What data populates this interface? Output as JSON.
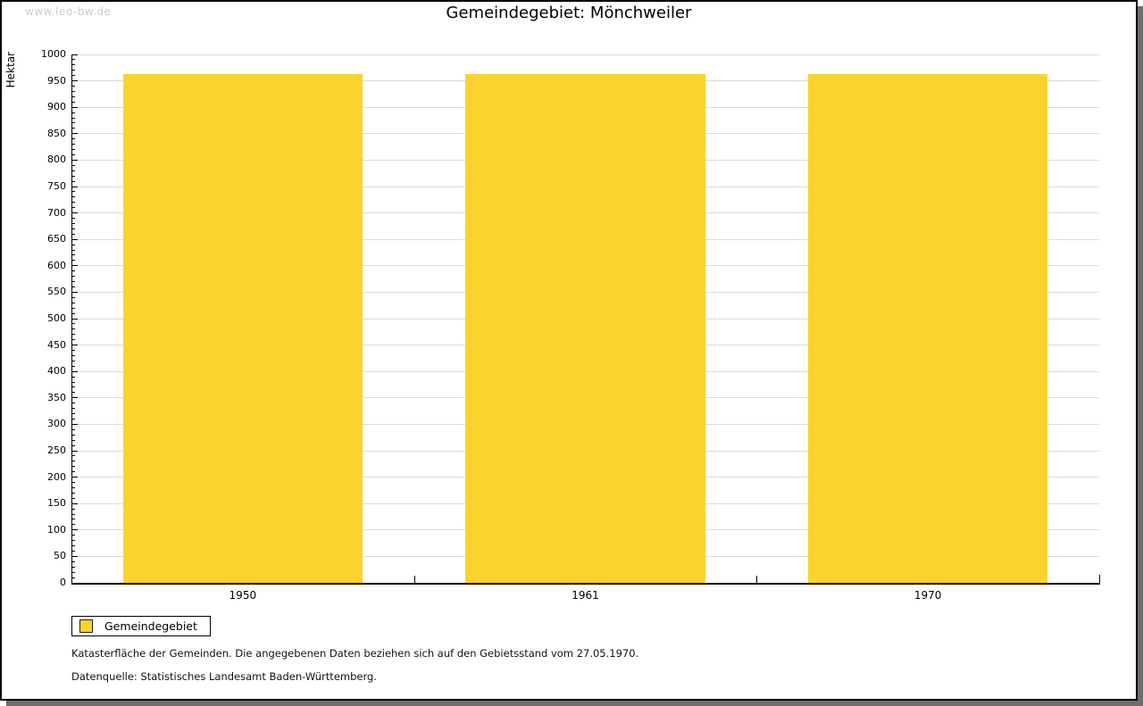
{
  "watermark": "www.leo-bw.de",
  "header": {
    "title": "Gemeindegebiet: Mönchweiler"
  },
  "chart_data": {
    "type": "bar",
    "categories": [
      "1950",
      "1961",
      "1970"
    ],
    "values": [
      962,
      962,
      962
    ],
    "title": "Gemeindegebiet: Mönchweiler",
    "xlabel": "",
    "ylabel": "Hektar",
    "ylim": [
      0,
      1000
    ],
    "ytick_step": 50,
    "yminor_step": 10,
    "grid": true,
    "legend_entries": [
      "Gemeindegebiet"
    ],
    "legend_position": "bottom-left",
    "bar_color": "#fcd32c"
  },
  "legend": {
    "label": "Gemeindegebiet"
  },
  "footer": {
    "note": "Katasterfläche der Gemeinden. Die angegebenen Daten beziehen sich auf den Gebietsstand vom 27.05.1970.",
    "source": "Datenquelle: Statistisches Landesamt Baden-Württemberg."
  },
  "colors": {
    "bar": "#fcd32c",
    "gridline": "#dbdbdb",
    "watermark_text": "#cccccc",
    "frame_shadow": "#6e6e6e"
  }
}
